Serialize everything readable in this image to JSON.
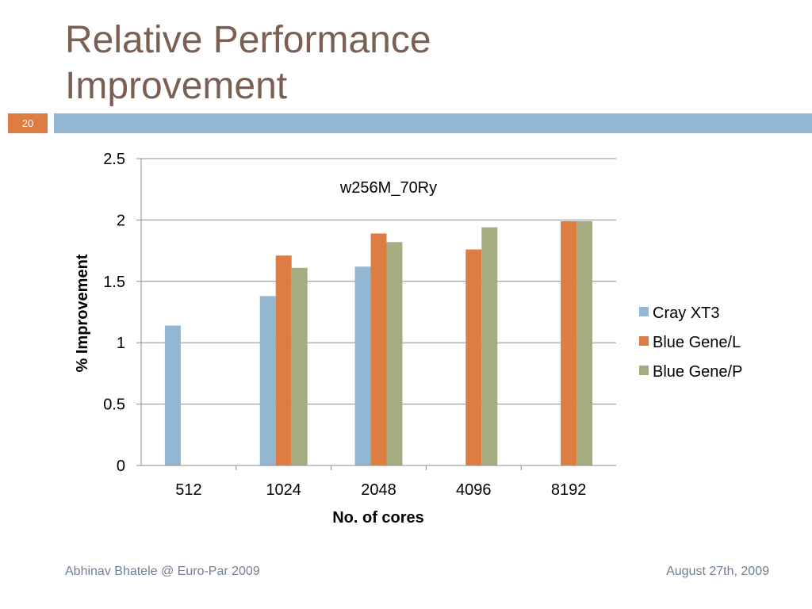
{
  "slide": {
    "title_line1": "Relative Performance",
    "title_line2": "Improvement",
    "number": "20",
    "footer_left": "Abhinav Bhatele @ Euro-Par 2009",
    "footer_right": "August 27th, 2009"
  },
  "colors": {
    "title": "#7a5f52",
    "accent_bar": "#93b6d3",
    "number_badge": "#dd7d43"
  },
  "chart_data": {
    "type": "bar",
    "title": "w256M_70Ry",
    "xlabel": "No. of cores",
    "ylabel": "% Improvement",
    "categories": [
      "512",
      "1024",
      "2048",
      "4096",
      "8192"
    ],
    "ylim": [
      0,
      2.5
    ],
    "yticks": [
      0,
      0.5,
      1,
      1.5,
      2,
      2.5
    ],
    "ytick_labels": [
      "0",
      "0.5",
      "1",
      "1.5",
      "2",
      "2.5"
    ],
    "grid": true,
    "legend_position": "right",
    "series": [
      {
        "name": "Cray XT3",
        "color": "#93b6d3",
        "values": [
          1.14,
          1.38,
          1.62,
          null,
          null
        ]
      },
      {
        "name": "Blue Gene/L",
        "color": "#dd7d43",
        "values": [
          null,
          1.71,
          1.89,
          1.76,
          1.99
        ]
      },
      {
        "name": "Blue Gene/P",
        "color": "#a5ad80",
        "values": [
          null,
          1.61,
          1.82,
          1.94,
          1.99
        ]
      }
    ]
  }
}
